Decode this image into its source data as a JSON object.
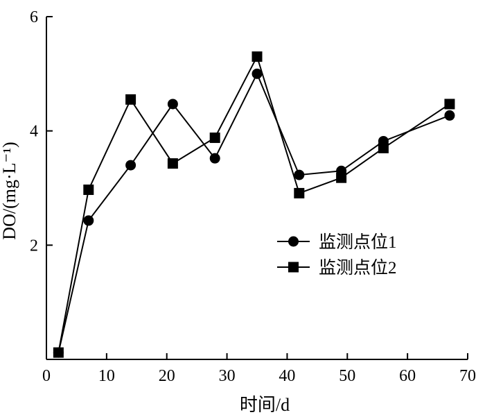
{
  "chart_data": {
    "type": "line",
    "xlabel": "时间/d",
    "ylabel": "DO/(mg·L⁻¹)",
    "xlim": [
      0,
      70
    ],
    "ylim": [
      0,
      6
    ],
    "xticks": [
      "0",
      "10",
      "20",
      "30",
      "40",
      "50",
      "60",
      "70"
    ],
    "yticks": [
      "2",
      "4",
      "6"
    ],
    "grid": false,
    "legend_position": "center-right",
    "series": [
      {
        "name": "监测点位1",
        "marker": "circle",
        "color": "#000000",
        "x": [
          2,
          7,
          14,
          21,
          28,
          35,
          42,
          49,
          56,
          67
        ],
        "y": [
          0.12,
          2.43,
          3.4,
          4.47,
          3.52,
          5.0,
          3.23,
          3.3,
          3.82,
          4.27
        ]
      },
      {
        "name": "监测点位2",
        "marker": "square",
        "color": "#000000",
        "x": [
          2,
          7,
          14,
          21,
          28,
          35,
          42,
          49,
          56,
          67
        ],
        "y": [
          0.12,
          2.97,
          4.55,
          3.43,
          3.88,
          5.3,
          2.91,
          3.18,
          3.7,
          4.47
        ]
      }
    ]
  }
}
